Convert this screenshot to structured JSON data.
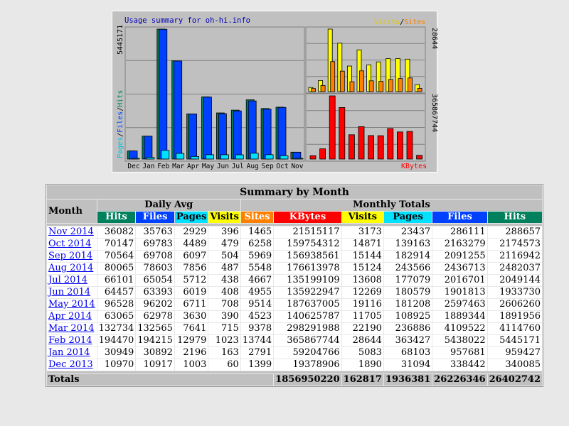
{
  "graph": {
    "title": "Usage summary for oh-hi.info",
    "legend_left": [
      "Pages",
      "Files",
      "Hits"
    ],
    "legend_right": [
      "Visits",
      "Sites"
    ],
    "kbytes_label": "KBytes",
    "max_hits_label": "5445171",
    "max_visits_label": "28644",
    "max_kbytes_label": "365867744",
    "colors": {
      "hits": "#00805c",
      "files": "#0040ff",
      "pages": "#00e0ff",
      "visits": "#ffff00",
      "sites": "#ff8000",
      "kbytes": "#ff0000",
      "panel": "#c0c0c0",
      "bg": "#e8e8e8"
    }
  },
  "chart_data": [
    {
      "type": "bar",
      "categories": [
        "Dec",
        "Jan",
        "Feb",
        "Mar",
        "Apr",
        "May",
        "Jun",
        "Jul",
        "Aug",
        "Sep",
        "Oct",
        "Nov"
      ],
      "series": [
        {
          "name": "Hits",
          "values": [
            340085,
            959427,
            5445171,
            4114760,
            1891956,
            2606260,
            1933730,
            2049144,
            2482037,
            2116942,
            2174573,
            288657
          ]
        },
        {
          "name": "Files",
          "values": [
            338442,
            957681,
            5438022,
            4109522,
            1889344,
            2597463,
            1901813,
            2016701,
            2436713,
            2091255,
            2163279,
            286111
          ]
        },
        {
          "name": "Pages",
          "values": [
            31094,
            68103,
            363427,
            236886,
            108925,
            181208,
            180579,
            177079,
            243566,
            182914,
            139163,
            23437
          ]
        }
      ],
      "ylim": [
        0,
        5445171
      ]
    },
    {
      "type": "bar",
      "categories": [
        "Dec",
        "Jan",
        "Feb",
        "Mar",
        "Apr",
        "May",
        "Jun",
        "Jul",
        "Aug",
        "Sep",
        "Oct",
        "Nov"
      ],
      "series": [
        {
          "name": "Visits",
          "values": [
            1890,
            5083,
            28644,
            22190,
            11705,
            19116,
            12269,
            13608,
            15124,
            15144,
            14871,
            3173
          ]
        },
        {
          "name": "Sites",
          "values": [
            1399,
            2791,
            13744,
            9378,
            4523,
            9514,
            4955,
            4667,
            5548,
            5969,
            6258,
            1465
          ]
        }
      ],
      "ylim": [
        0,
        28644
      ]
    },
    {
      "type": "bar",
      "categories": [
        "Dec",
        "Jan",
        "Feb",
        "Mar",
        "Apr",
        "May",
        "Jun",
        "Jul",
        "Aug",
        "Sep",
        "Oct",
        "Nov"
      ],
      "series": [
        {
          "name": "KBytes",
          "values": [
            19378906,
            59204766,
            365867744,
            298291988,
            140625787,
            187637005,
            135922947,
            135199109,
            176613978,
            156938561,
            159754312,
            21515117
          ]
        }
      ],
      "ylim": [
        0,
        365867744
      ]
    }
  ],
  "table": {
    "title": "Summary by Month",
    "month_header": "Month",
    "daily_avg_header": "Daily Avg",
    "monthly_totals_header": "Monthly Totals",
    "daily_cols": [
      "Hits",
      "Files",
      "Pages",
      "Visits"
    ],
    "monthly_cols": [
      "Sites",
      "KBytes",
      "Visits",
      "Pages",
      "Files",
      "Hits"
    ],
    "rows": [
      {
        "month": "Nov 2014",
        "d_hits": "36082",
        "d_files": "35763",
        "d_pages": "2929",
        "d_visits": "396",
        "sites": "1465",
        "kbytes": "21515117",
        "visits": "3173",
        "pages": "23437",
        "files": "286111",
        "hits": "288657"
      },
      {
        "month": "Oct 2014",
        "d_hits": "70147",
        "d_files": "69783",
        "d_pages": "4489",
        "d_visits": "479",
        "sites": "6258",
        "kbytes": "159754312",
        "visits": "14871",
        "pages": "139163",
        "files": "2163279",
        "hits": "2174573"
      },
      {
        "month": "Sep 2014",
        "d_hits": "70564",
        "d_files": "69708",
        "d_pages": "6097",
        "d_visits": "504",
        "sites": "5969",
        "kbytes": "156938561",
        "visits": "15144",
        "pages": "182914",
        "files": "2091255",
        "hits": "2116942"
      },
      {
        "month": "Aug 2014",
        "d_hits": "80065",
        "d_files": "78603",
        "d_pages": "7856",
        "d_visits": "487",
        "sites": "5548",
        "kbytes": "176613978",
        "visits": "15124",
        "pages": "243566",
        "files": "2436713",
        "hits": "2482037"
      },
      {
        "month": "Jul 2014",
        "d_hits": "66101",
        "d_files": "65054",
        "d_pages": "5712",
        "d_visits": "438",
        "sites": "4667",
        "kbytes": "135199109",
        "visits": "13608",
        "pages": "177079",
        "files": "2016701",
        "hits": "2049144"
      },
      {
        "month": "Jun 2014",
        "d_hits": "64457",
        "d_files": "63393",
        "d_pages": "6019",
        "d_visits": "408",
        "sites": "4955",
        "kbytes": "135922947",
        "visits": "12269",
        "pages": "180579",
        "files": "1901813",
        "hits": "1933730"
      },
      {
        "month": "May 2014",
        "d_hits": "96528",
        "d_files": "96202",
        "d_pages": "6711",
        "d_visits": "708",
        "sites": "9514",
        "kbytes": "187637005",
        "visits": "19116",
        "pages": "181208",
        "files": "2597463",
        "hits": "2606260"
      },
      {
        "month": "Apr 2014",
        "d_hits": "63065",
        "d_files": "62978",
        "d_pages": "3630",
        "d_visits": "390",
        "sites": "4523",
        "kbytes": "140625787",
        "visits": "11705",
        "pages": "108925",
        "files": "1889344",
        "hits": "1891956"
      },
      {
        "month": "Mar 2014",
        "d_hits": "132734",
        "d_files": "132565",
        "d_pages": "7641",
        "d_visits": "715",
        "sites": "9378",
        "kbytes": "298291988",
        "visits": "22190",
        "pages": "236886",
        "files": "4109522",
        "hits": "4114760"
      },
      {
        "month": "Feb 2014",
        "d_hits": "194470",
        "d_files": "194215",
        "d_pages": "12979",
        "d_visits": "1023",
        "sites": "13744",
        "kbytes": "365867744",
        "visits": "28644",
        "pages": "363427",
        "files": "5438022",
        "hits": "5445171"
      },
      {
        "month": "Jan 2014",
        "d_hits": "30949",
        "d_files": "30892",
        "d_pages": "2196",
        "d_visits": "163",
        "sites": "2791",
        "kbytes": "59204766",
        "visits": "5083",
        "pages": "68103",
        "files": "957681",
        "hits": "959427"
      },
      {
        "month": "Dec 2013",
        "d_hits": "10970",
        "d_files": "10917",
        "d_pages": "1003",
        "d_visits": "60",
        "sites": "1399",
        "kbytes": "19378906",
        "visits": "1890",
        "pages": "31094",
        "files": "338442",
        "hits": "340085"
      }
    ],
    "totals": {
      "label": "Totals",
      "kbytes": "1856950220",
      "visits": "162817",
      "pages": "1936381",
      "files": "26226346",
      "hits": "26402742"
    }
  }
}
